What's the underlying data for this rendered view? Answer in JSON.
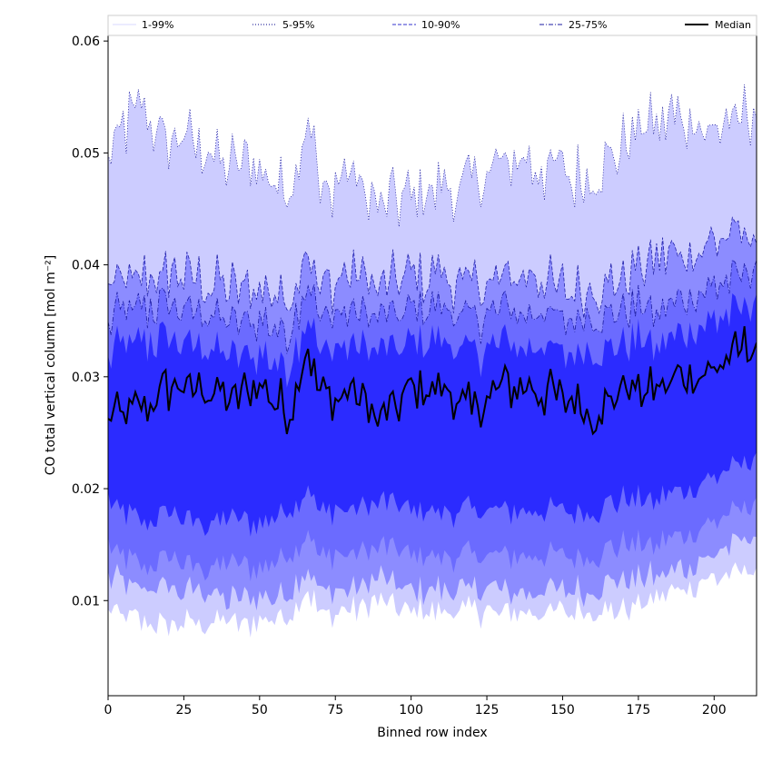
{
  "chart_data": {
    "type": "area",
    "xlabel": "Binned row index",
    "ylabel": "CO total vertical column [mol m⁻²]",
    "xlim": [
      0,
      214
    ],
    "ylim": [
      0.0015,
      0.0605
    ],
    "xticks": [
      0,
      25,
      50,
      75,
      100,
      125,
      150,
      175,
      200
    ],
    "yticks": [
      0.01,
      0.02,
      0.03,
      0.04,
      0.05,
      0.06
    ],
    "ytick_labels": [
      "0.01",
      "0.02",
      "0.03",
      "0.04",
      "0.05",
      "0.06"
    ],
    "grid": false,
    "legend_placement": "top",
    "legend": [
      {
        "name": "1-99%",
        "color": "#d8d8ff",
        "style": "solid"
      },
      {
        "name": "5-95%",
        "color": "#00008b",
        "style": "dotted"
      },
      {
        "name": "10-90%",
        "color": "#3333cc",
        "style": "dashed"
      },
      {
        "name": "25-75%",
        "color": "#1a1aa0",
        "style": "dashdot"
      },
      {
        "name": "Median",
        "color": "#000000",
        "style": "solid"
      }
    ],
    "band_colors": {
      "p1_99": "#ffffff",
      "p5_95": "#ccccff",
      "p10_90": "#8c8cff",
      "p25_75": "#6b6bff",
      "core": "#2b2bff",
      "median": "#000000"
    },
    "x_step": 1,
    "series_anchors": {
      "x": [
        0,
        10,
        20,
        30,
        40,
        50,
        60,
        66,
        70,
        80,
        90,
        100,
        110,
        120,
        130,
        140,
        150,
        160,
        170,
        180,
        190,
        200,
        214
      ],
      "median": [
        0.026,
        0.027,
        0.029,
        0.029,
        0.028,
        0.029,
        0.027,
        0.033,
        0.028,
        0.029,
        0.026,
        0.029,
        0.029,
        0.027,
        0.029,
        0.029,
        0.028,
        0.027,
        0.029,
        0.029,
        0.03,
        0.031,
        0.033
      ],
      "p25": [
        0.015,
        0.013,
        0.014,
        0.013,
        0.013,
        0.013,
        0.014,
        0.016,
        0.014,
        0.014,
        0.015,
        0.014,
        0.014,
        0.014,
        0.014,
        0.014,
        0.014,
        0.014,
        0.015,
        0.015,
        0.016,
        0.017,
        0.019
      ],
      "p75": [
        0.035,
        0.036,
        0.036,
        0.036,
        0.035,
        0.035,
        0.034,
        0.039,
        0.035,
        0.036,
        0.035,
        0.036,
        0.036,
        0.035,
        0.036,
        0.036,
        0.035,
        0.035,
        0.036,
        0.036,
        0.037,
        0.038,
        0.04
      ],
      "p10": [
        0.012,
        0.011,
        0.011,
        0.011,
        0.01,
        0.01,
        0.011,
        0.013,
        0.011,
        0.011,
        0.012,
        0.011,
        0.011,
        0.011,
        0.011,
        0.011,
        0.011,
        0.011,
        0.012,
        0.012,
        0.013,
        0.014,
        0.016
      ],
      "p90": [
        0.038,
        0.039,
        0.039,
        0.039,
        0.038,
        0.038,
        0.037,
        0.042,
        0.038,
        0.039,
        0.038,
        0.039,
        0.039,
        0.038,
        0.039,
        0.039,
        0.038,
        0.038,
        0.039,
        0.04,
        0.041,
        0.042,
        0.043
      ],
      "p5": [
        0.009,
        0.008,
        0.008,
        0.008,
        0.008,
        0.008,
        0.009,
        0.011,
        0.009,
        0.009,
        0.01,
        0.009,
        0.009,
        0.009,
        0.009,
        0.009,
        0.009,
        0.009,
        0.009,
        0.01,
        0.011,
        0.012,
        0.013
      ],
      "p95": [
        0.05,
        0.054,
        0.051,
        0.051,
        0.049,
        0.049,
        0.047,
        0.054,
        0.046,
        0.048,
        0.045,
        0.046,
        0.047,
        0.047,
        0.049,
        0.049,
        0.048,
        0.048,
        0.051,
        0.053,
        0.053,
        0.052,
        0.054
      ],
      "p1": [
        0.007,
        0.006,
        0.006,
        0.006,
        0.006,
        0.006,
        0.007,
        0.008,
        0.007,
        0.007,
        0.008,
        0.007,
        0.007,
        0.007,
        0.007,
        0.007,
        0.007,
        0.007,
        0.007,
        0.008,
        0.009,
        0.01,
        0.012
      ],
      "p99": [
        0.05,
        0.054,
        0.051,
        0.051,
        0.049,
        0.049,
        0.047,
        0.054,
        0.046,
        0.048,
        0.045,
        0.046,
        0.047,
        0.047,
        0.049,
        0.049,
        0.048,
        0.048,
        0.051,
        0.053,
        0.053,
        0.052,
        0.054
      ]
    }
  }
}
